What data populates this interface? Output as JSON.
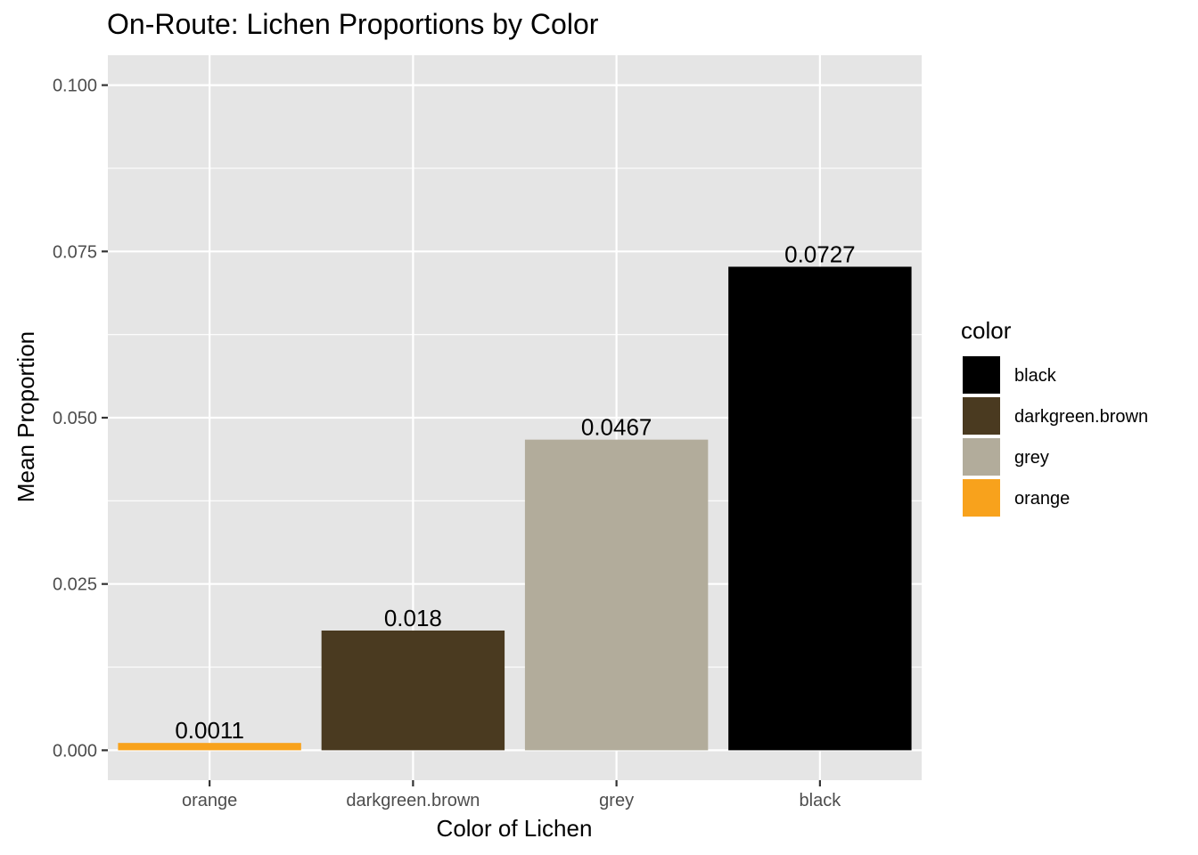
{
  "chart_data": {
    "type": "bar",
    "title": "On-Route: Lichen Proportions by Color",
    "xlabel": "Color of Lichen",
    "ylabel": "Mean Proportion",
    "categories": [
      "orange",
      "darkgreen.brown",
      "grey",
      "black"
    ],
    "values": [
      0.0011,
      0.018,
      0.0467,
      0.0727
    ],
    "data_labels": [
      "0.0011",
      "0.018",
      "0.0467",
      "0.0727"
    ],
    "colors": [
      "#f8a21c",
      "#4a3a20",
      "#b2ac9b",
      "#000000"
    ],
    "ylim": [
      -0.0045,
      0.1045
    ],
    "y_ticks": [
      0.0,
      0.025,
      0.05,
      0.075,
      0.1
    ],
    "y_tick_labels": [
      "0.000",
      "0.025",
      "0.050",
      "0.075",
      "0.100"
    ],
    "grid": true,
    "panel_background": "#e5e5e5",
    "legend": {
      "title": "color",
      "position": "right",
      "entries": [
        {
          "label": "black",
          "color": "#000000"
        },
        {
          "label": "darkgreen.brown",
          "color": "#4a3a20"
        },
        {
          "label": "grey",
          "color": "#b2ac9b"
        },
        {
          "label": "orange",
          "color": "#f8a21c"
        }
      ]
    }
  }
}
